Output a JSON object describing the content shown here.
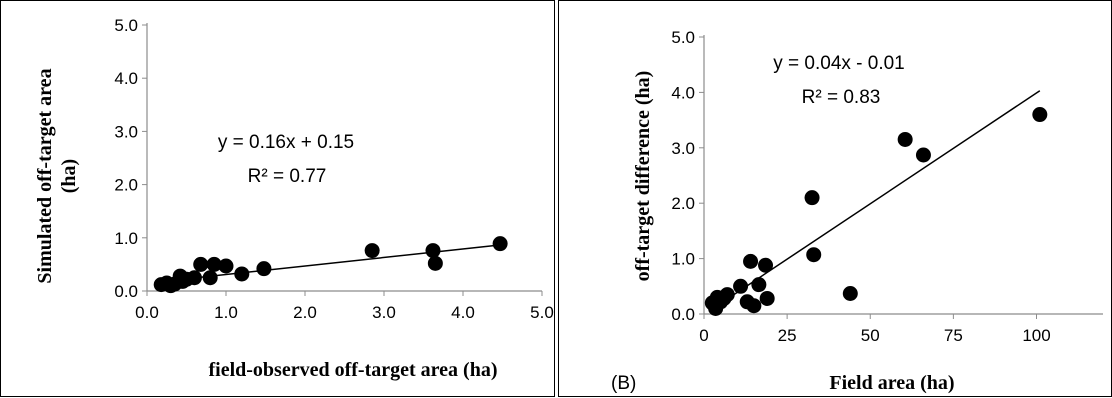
{
  "chart_data": [
    {
      "type": "scatter",
      "xlabel": "field-observed off-target area (ha)",
      "ylabel": "Simulated off-target area (ha)",
      "ylabel_lines": [
        "Simulated off-target area",
        "(ha)"
      ],
      "xlim": [
        0,
        5
      ],
      "ylim": [
        0,
        5
      ],
      "xticks": [
        "0.0",
        "1.0",
        "2.0",
        "3.0",
        "4.0",
        "5.0"
      ],
      "yticks": [
        "0.0",
        "1.0",
        "2.0",
        "3.0",
        "4.0",
        "5.0"
      ],
      "grid": false,
      "trendline": {
        "slope": 0.16,
        "intercept": 0.15,
        "x_range": [
          0.25,
          4.45
        ]
      },
      "annotations": [
        "y = 0.16x + 0.15",
        "R² = 0.77"
      ],
      "points": [
        {
          "x": 0.18,
          "y": 0.12
        },
        {
          "x": 0.25,
          "y": 0.15
        },
        {
          "x": 0.3,
          "y": 0.1
        },
        {
          "x": 0.35,
          "y": 0.13
        },
        {
          "x": 0.42,
          "y": 0.28
        },
        {
          "x": 0.45,
          "y": 0.18
        },
        {
          "x": 0.5,
          "y": 0.22
        },
        {
          "x": 0.6,
          "y": 0.25
        },
        {
          "x": 0.68,
          "y": 0.5
        },
        {
          "x": 0.8,
          "y": 0.25
        },
        {
          "x": 0.85,
          "y": 0.5
        },
        {
          "x": 1.0,
          "y": 0.47
        },
        {
          "x": 1.2,
          "y": 0.32
        },
        {
          "x": 1.48,
          "y": 0.42
        },
        {
          "x": 2.85,
          "y": 0.76
        },
        {
          "x": 3.62,
          "y": 0.76
        },
        {
          "x": 3.65,
          "y": 0.52
        },
        {
          "x": 4.47,
          "y": 0.89
        }
      ]
    },
    {
      "type": "scatter",
      "panel_label": "(B)",
      "xlabel": "Field area (ha)",
      "ylabel": "off-target difference (ha)",
      "xlim": [
        0,
        120
      ],
      "ylim": [
        0,
        5
      ],
      "xticks": [
        "0",
        "25",
        "50",
        "75",
        "100"
      ],
      "xtick_values": [
        0,
        25,
        50,
        75,
        100
      ],
      "yticks": [
        "0.0",
        "1.0",
        "2.0",
        "3.0",
        "4.0",
        "5.0"
      ],
      "grid": false,
      "trendline": {
        "slope": 0.04,
        "intercept": -0.01,
        "x_range": [
          3,
          101
        ]
      },
      "annotations": [
        "y = 0.04x - 0.01",
        "R² = 0.83"
      ],
      "points": [
        {
          "x": 2.5,
          "y": 0.2
        },
        {
          "x": 3.5,
          "y": 0.1
        },
        {
          "x": 4,
          "y": 0.3
        },
        {
          "x": 5,
          "y": 0.22
        },
        {
          "x": 6,
          "y": 0.28
        },
        {
          "x": 7,
          "y": 0.35
        },
        {
          "x": 11,
          "y": 0.5
        },
        {
          "x": 13,
          "y": 0.22
        },
        {
          "x": 14,
          "y": 0.95
        },
        {
          "x": 15,
          "y": 0.15
        },
        {
          "x": 16.5,
          "y": 0.53
        },
        {
          "x": 18.5,
          "y": 0.88
        },
        {
          "x": 19,
          "y": 0.28
        },
        {
          "x": 32.5,
          "y": 2.1
        },
        {
          "x": 33,
          "y": 1.07
        },
        {
          "x": 44,
          "y": 0.37
        },
        {
          "x": 60.5,
          "y": 3.15
        },
        {
          "x": 66,
          "y": 2.87
        },
        {
          "x": 101,
          "y": 3.6
        }
      ]
    }
  ]
}
